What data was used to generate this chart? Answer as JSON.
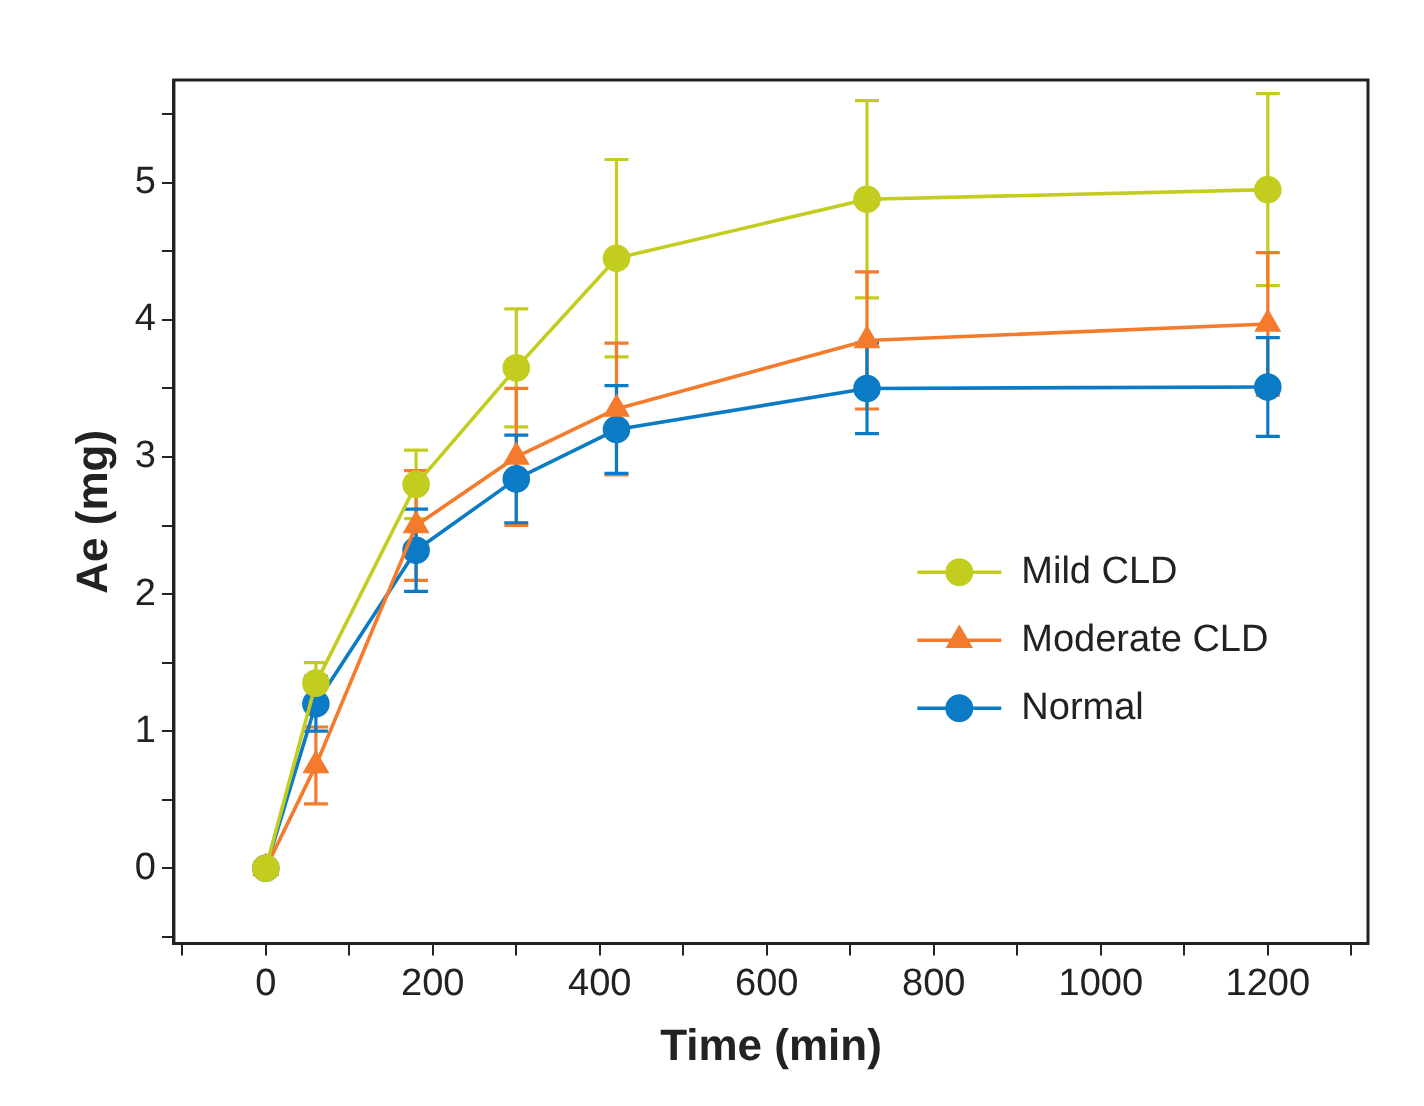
{
  "chart_data": {
    "type": "line",
    "xlabel": "Time (min)",
    "ylabel": "Ae (mg)",
    "x": [
      0,
      60,
      180,
      300,
      420,
      720,
      1200
    ],
    "series": [
      {
        "name": "Mild CLD",
        "color": "#c3cd20",
        "marker": "circle",
        "values": [
          0,
          1.35,
          2.8,
          3.65,
          4.45,
          4.88,
          4.95
        ],
        "errors": [
          null,
          0.15,
          0.25,
          0.43,
          0.72,
          0.72,
          0.7
        ]
      },
      {
        "name": "Moderate CLD",
        "color": "#f47a2c",
        "marker": "triangle",
        "values": [
          0,
          0.75,
          2.5,
          3.0,
          3.35,
          3.85,
          3.97
        ],
        "errors": [
          null,
          0.28,
          0.4,
          0.5,
          0.48,
          0.5,
          0.52
        ]
      },
      {
        "name": "Normal",
        "color": "#0a7bc4",
        "marker": "circle",
        "values": [
          0,
          1.2,
          2.32,
          2.84,
          3.2,
          3.5,
          3.51
        ],
        "errors": [
          null,
          0.2,
          0.3,
          0.32,
          0.32,
          0.33,
          0.36
        ]
      }
    ],
    "xlim": [
      -110,
      1320
    ],
    "ylim": [
      -0.55,
      5.75
    ],
    "xticks": [
      {
        "value": -100,
        "label": null
      },
      0,
      {
        "value": 100,
        "label": null
      },
      200,
      {
        "value": 300,
        "label": null
      },
      400,
      {
        "value": 500,
        "label": null
      },
      600,
      {
        "value": 700,
        "label": null
      },
      800,
      {
        "value": 900,
        "label": null
      },
      1000,
      {
        "value": 1100,
        "label": null
      },
      1200,
      {
        "value": 1300,
        "label": null
      }
    ],
    "yticks": [
      {
        "value": -0.5,
        "label": null
      },
      0,
      {
        "value": 0.5,
        "label": null
      },
      1,
      {
        "value": 1.5,
        "label": null
      },
      2,
      {
        "value": 2.5,
        "label": null
      },
      3,
      {
        "value": 3.5,
        "label": null
      },
      4,
      {
        "value": 4.5,
        "label": null
      },
      5,
      {
        "value": 5.5,
        "label": null
      }
    ],
    "grid": false,
    "legend": "right",
    "line_style": "solid"
  }
}
